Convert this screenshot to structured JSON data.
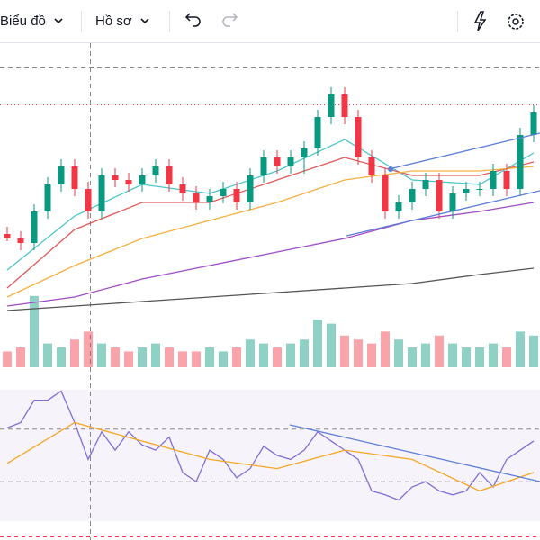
{
  "toolbar": {
    "chart_menu": "Biểu đồ",
    "profile_menu": "Hồ sơ"
  },
  "chart_data": [
    {
      "type": "candlestick",
      "ylim": [
        50,
        340
      ],
      "up_color": "#089981",
      "down_color": "#f23645",
      "open": [
        140,
        135,
        130,
        165,
        195,
        215,
        190,
        165,
        205,
        200,
        195,
        205,
        215,
        195,
        185,
        175,
        182,
        190,
        175,
        205,
        225,
        215,
        225,
        235,
        270,
        295,
        270,
        225,
        205,
        165,
        175,
        190,
        200,
        165,
        185,
        190,
        190,
        210,
        190,
        250
      ],
      "high": [
        148,
        143,
        173,
        203,
        223,
        223,
        198,
        213,
        213,
        208,
        213,
        223,
        223,
        203,
        193,
        190,
        198,
        198,
        213,
        233,
        233,
        233,
        243,
        278,
        303,
        303,
        278,
        233,
        213,
        183,
        198,
        208,
        208,
        193,
        198,
        198,
        218,
        218,
        258,
        283
      ],
      "low": [
        132,
        122,
        122,
        157,
        187,
        182,
        157,
        157,
        192,
        187,
        187,
        197,
        187,
        177,
        167,
        167,
        174,
        167,
        167,
        197,
        207,
        207,
        207,
        227,
        262,
        262,
        217,
        197,
        157,
        157,
        167,
        182,
        157,
        157,
        177,
        182,
        182,
        182,
        182,
        242
      ],
      "close": [
        135,
        130,
        165,
        195,
        215,
        190,
        165,
        205,
        200,
        195,
        205,
        215,
        195,
        185,
        175,
        182,
        190,
        175,
        205,
        225,
        215,
        225,
        235,
        270,
        295,
        270,
        225,
        205,
        165,
        175,
        190,
        200,
        165,
        185,
        190,
        190,
        210,
        190,
        250,
        275
      ],
      "series": [
        {
          "color": "#4dc4c8",
          "x": [
            0,
            5,
            10,
            15,
            20,
            25,
            30,
            35,
            39
          ],
          "values": [
            100,
            160,
            195,
            185,
            210,
            245,
            200,
            195,
            230
          ]
        },
        {
          "color": "#e05a5a",
          "x": [
            0,
            5,
            10,
            15,
            20,
            25,
            30,
            35,
            39
          ],
          "values": [
            80,
            145,
            175,
            175,
            200,
            225,
            205,
            205,
            220
          ]
        },
        {
          "color": "#f5b041",
          "x": [
            0,
            5,
            10,
            15,
            20,
            25,
            30,
            35,
            39
          ],
          "values": [
            70,
            105,
            135,
            155,
            175,
            200,
            210,
            210,
            215
          ]
        },
        {
          "color": "#a04cc0",
          "x": [
            0,
            5,
            10,
            15,
            20,
            25,
            30,
            35,
            39
          ],
          "values": [
            60,
            70,
            90,
            105,
            120,
            135,
            155,
            165,
            175
          ]
        },
        {
          "color": "#555555",
          "x": [
            0,
            5,
            10,
            15,
            20,
            25,
            30,
            35,
            39
          ],
          "values": [
            55,
            60,
            65,
            70,
            75,
            80,
            85,
            95,
            102
          ]
        }
      ]
    },
    {
      "type": "bar",
      "ylim": [
        0,
        100
      ],
      "values": [
        20,
        25,
        90,
        30,
        25,
        35,
        45,
        30,
        25,
        20,
        25,
        30,
        25,
        20,
        20,
        25,
        20,
        25,
        35,
        30,
        25,
        30,
        35,
        60,
        55,
        40,
        35,
        30,
        45,
        35,
        25,
        30,
        40,
        30,
        25,
        25,
        30,
        25,
        45,
        40
      ]
    },
    {
      "type": "line",
      "ylim": [
        0,
        100
      ],
      "yticks": [
        30,
        70
      ],
      "color": "#7e6fd6",
      "values": [
        71,
        75,
        92,
        92,
        99,
        75,
        47,
        68,
        54,
        68,
        58,
        54,
        64,
        37,
        30,
        54,
        47,
        33,
        40,
        57,
        50,
        47,
        54,
        68,
        61,
        54,
        47,
        23,
        20,
        16,
        26,
        30,
        23,
        20,
        23,
        37,
        26,
        47,
        54,
        61
      ],
      "series": [
        {
          "color": "#f5a623",
          "x": [
            0,
            5,
            10,
            15,
            20,
            25,
            30,
            35,
            39
          ],
          "values": [
            44,
            75,
            61,
            47,
            40,
            54,
            47,
            23,
            37
          ]
        }
      ]
    }
  ]
}
